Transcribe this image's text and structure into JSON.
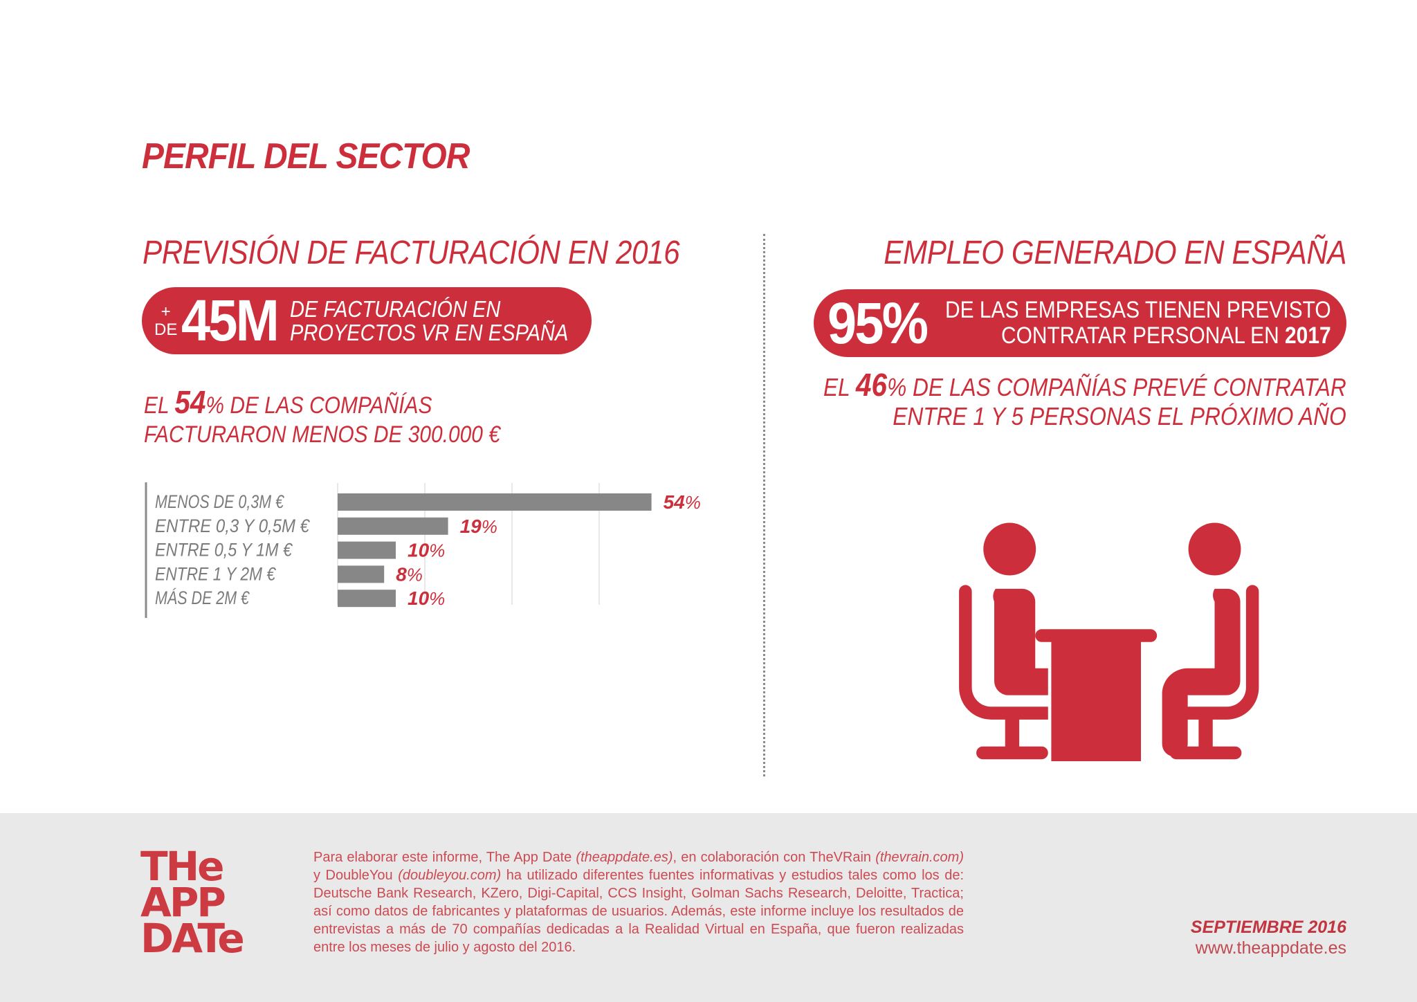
{
  "page": {
    "title": "PERFIL DEL SECTOR",
    "accent_color": "#cc2f3b"
  },
  "left": {
    "heading": "PREVISIÓN DE FACTURACIÓN EN 2016",
    "pill": {
      "plus": "+",
      "de": "DE",
      "value": "45M",
      "line1": "DE FACTURACIÓN EN",
      "line2": "PROYECTOS VR EN ESPAÑA"
    },
    "stat": {
      "prefix": "EL",
      "value": "54",
      "suffix": "% DE LAS COMPAÑÍAS",
      "line2": "FACTURARON MENOS DE 300.000 €"
    }
  },
  "right": {
    "heading": "EMPLEO GENERADO EN ESPAÑA",
    "pill": {
      "value": "95%",
      "line1": "DE LAS EMPRESAS TIENEN PREVISTO",
      "line2_prefix": "CONTRATAR PERSONAL EN",
      "line2_year": "2017"
    },
    "stat": {
      "prefix": "EL",
      "value": "46",
      "suffix": "% DE LAS COMPAÑÍAS PREVÉ CONTRATAR",
      "line2": "ENTRE 1 Y 5 PERSONAS EL PRÓXIMO AÑO"
    },
    "illustration_icon": "meeting-people-table-icon"
  },
  "chart_data": {
    "type": "bar",
    "orientation": "horizontal",
    "categories": [
      "MENOS DE 0,3M €",
      "ENTRE 0,3 Y 0,5M €",
      "ENTRE 0,5 Y 1M €",
      "ENTRE 1 Y 2M €",
      "MÁS DE 2M €"
    ],
    "values": [
      54,
      19,
      10,
      8,
      10
    ],
    "value_labels": [
      {
        "num": "54",
        "unit": "%"
      },
      {
        "num": "19",
        "unit": "%"
      },
      {
        "num": "10",
        "unit": "%"
      },
      {
        "num": "8",
        "unit": "%"
      },
      {
        "num": "10",
        "unit": "%"
      }
    ],
    "xlim": [
      0,
      60
    ],
    "gridlines": [
      0,
      15,
      30,
      45
    ],
    "grid": true,
    "bar_color": "#878787",
    "label_color": "#cc2f3b",
    "title": "",
    "xlabel": "",
    "ylabel": ""
  },
  "footer": {
    "logo_lines": [
      "THe",
      "APP",
      "DATe"
    ],
    "text_parts": [
      {
        "t": "Para elaborar este informe, The App Date ",
        "i": false
      },
      {
        "t": "(theappdate.es)",
        "i": true
      },
      {
        "t": ", en colaboración con TheVRain ",
        "i": false
      },
      {
        "t": "(thevrain.com)",
        "i": true
      },
      {
        "t": " y DoubleYou ",
        "i": false
      },
      {
        "t": "(doubleyou.com)",
        "i": true
      },
      {
        "t": " ha utilizado diferentes fuentes informativas y estudios tales como los de: Deutsche Bank Research, KZero, Digi-Capital, CCS Insight, Golman Sachs Research, Deloitte, Tractica; así como datos de fabricantes y plataformas de usuarios. Además, este informe incluye los resultados de entrevistas a más de 70 compañías dedicadas a la Realidad Virtual en España, que fueron realizadas entre los meses de julio y agosto del 2016.",
        "i": false
      }
    ],
    "date": "SEPTIEMBRE 2016",
    "url": "www.theappdate.es"
  }
}
